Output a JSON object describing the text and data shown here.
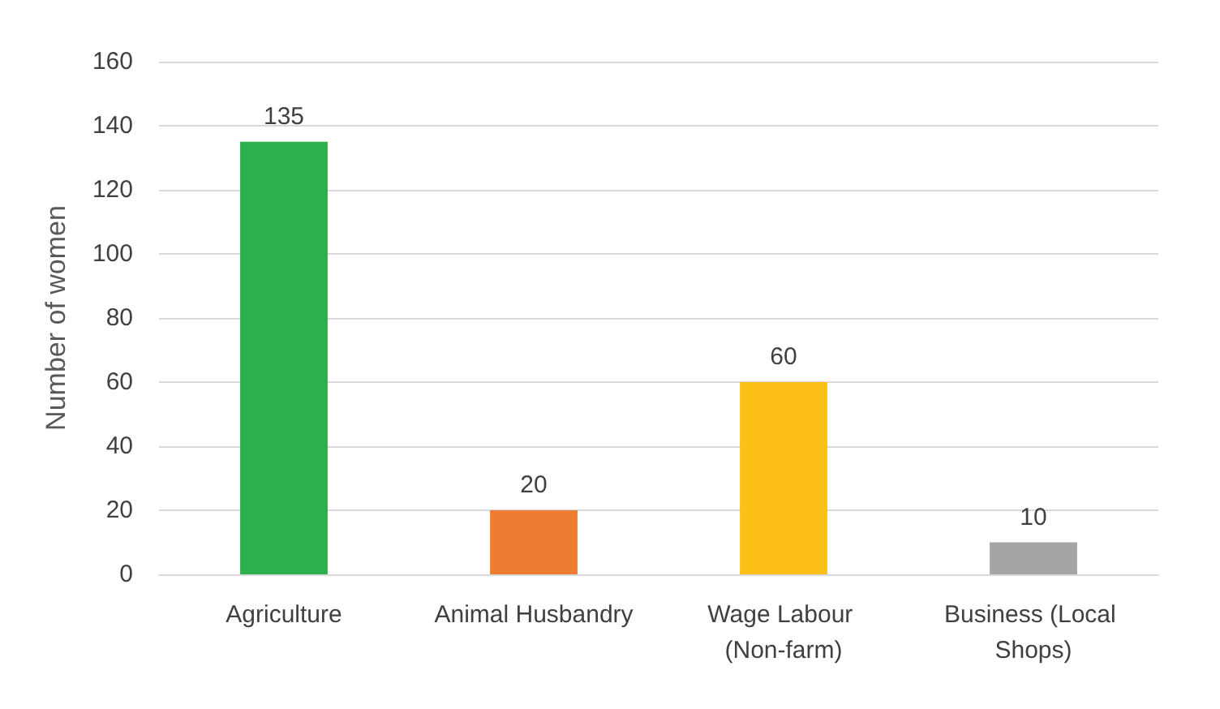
{
  "chart_data": {
    "type": "bar",
    "ylabel": "Number of women",
    "categories": [
      "Agriculture",
      "Animal Husbandry",
      "Wage Labour (Non-farm)",
      "Business (Local Shops)"
    ],
    "values": [
      135,
      20,
      60,
      10
    ],
    "colors": [
      "#2bb04b",
      "#ee7d31",
      "#fbbf17",
      "#a5a5a5"
    ],
    "ylim": [
      0,
      160
    ],
    "yticks": [
      0,
      20,
      40,
      60,
      80,
      100,
      120,
      140,
      160
    ],
    "grid": "y",
    "data_labels": true
  }
}
